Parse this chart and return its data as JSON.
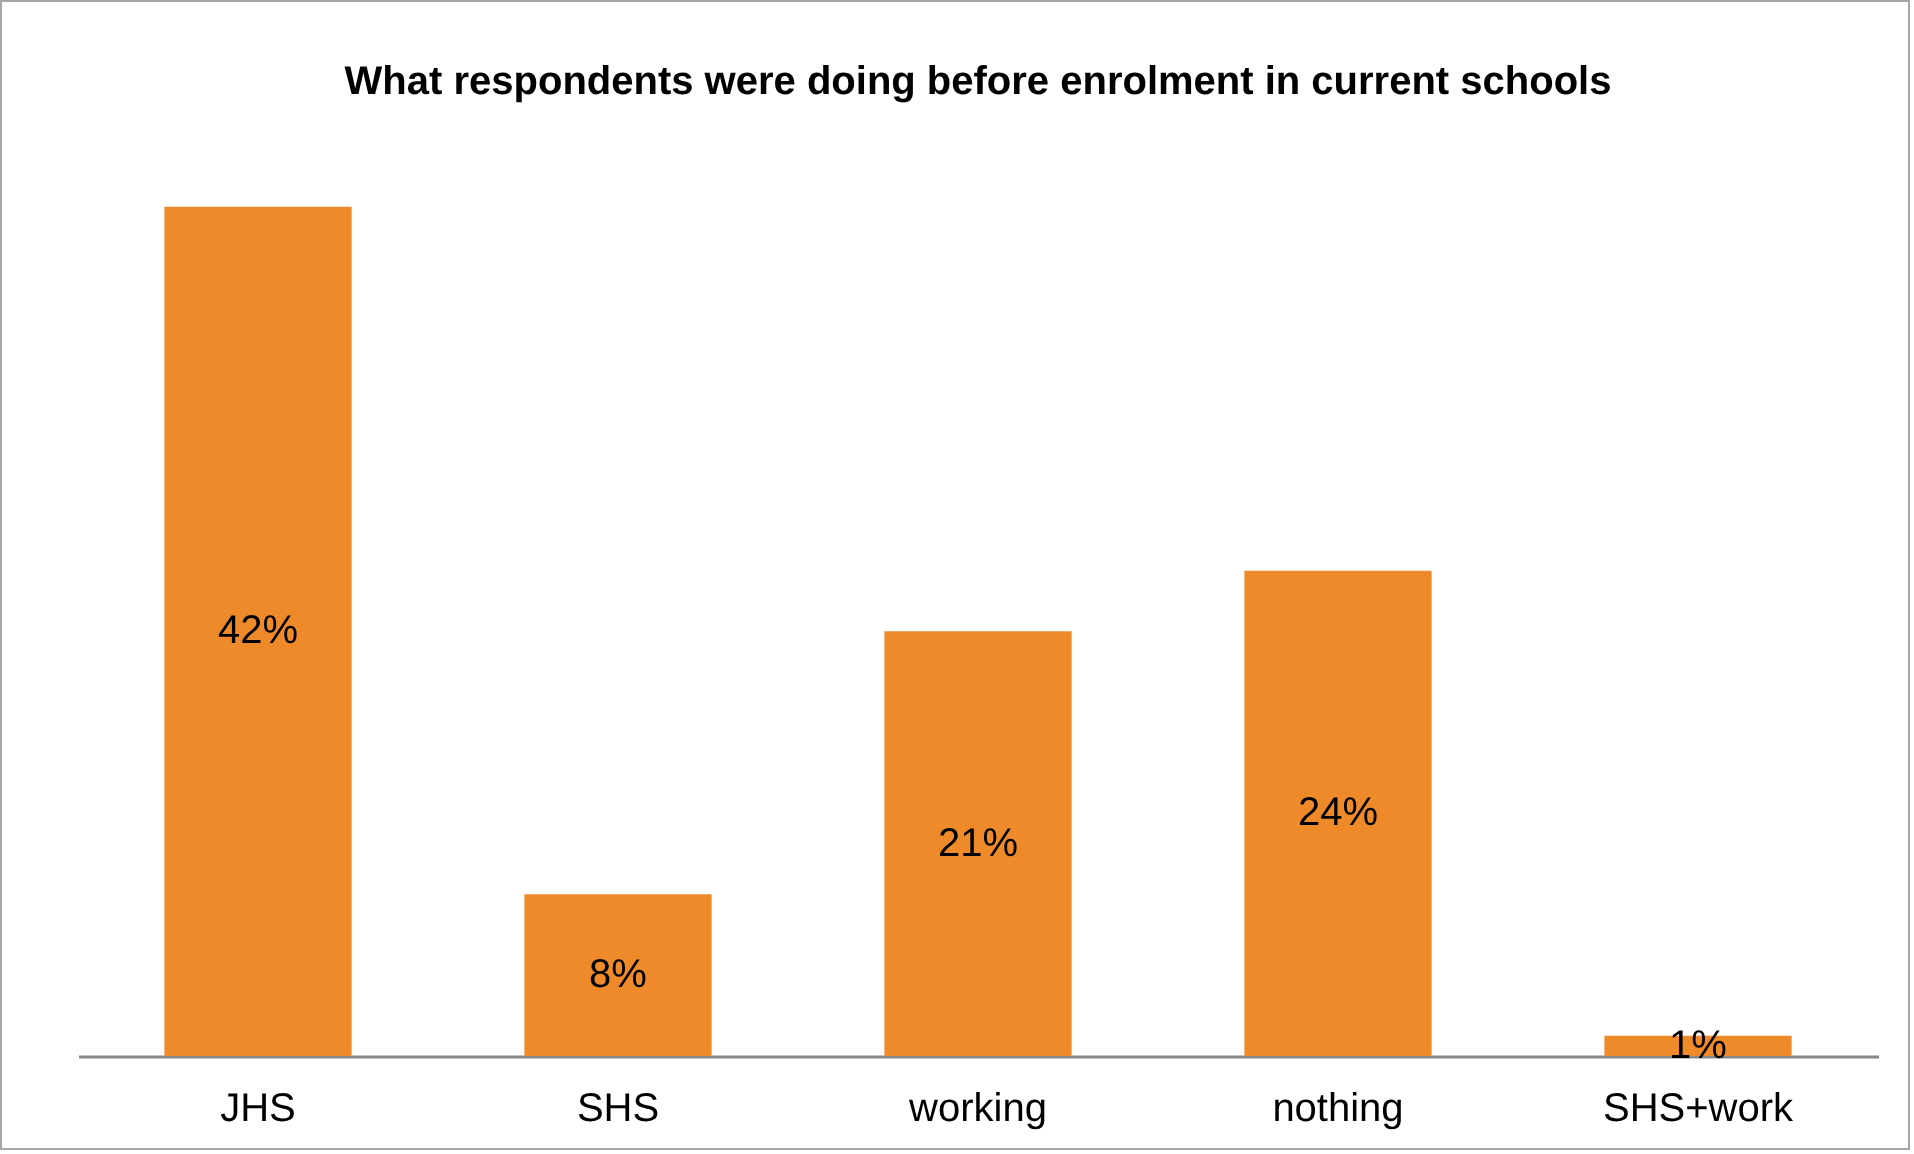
{
  "chart_data": {
    "type": "bar",
    "title": "What respondents were doing before enrolment in current schools",
    "categories": [
      "JHS",
      "SHS",
      "working",
      "nothing",
      "SHS+work"
    ],
    "values": [
      42,
      8,
      21,
      24,
      1
    ],
    "value_labels": [
      "42%",
      "8%",
      "21%",
      "24%",
      "1%"
    ],
    "color": "#ef8a2a"
  }
}
